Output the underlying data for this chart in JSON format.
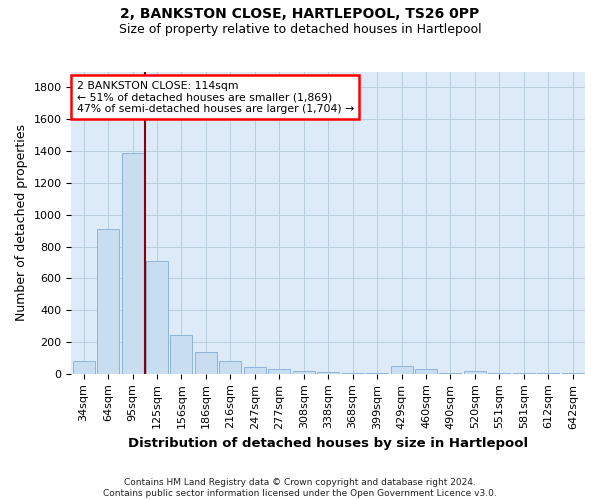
{
  "title": "2, BANKSTON CLOSE, HARTLEPOOL, TS26 0PP",
  "subtitle": "Size of property relative to detached houses in Hartlepool",
  "xlabel": "Distribution of detached houses by size in Hartlepool",
  "ylabel": "Number of detached properties",
  "footnote": "Contains HM Land Registry data © Crown copyright and database right 2024.\nContains public sector information licensed under the Open Government Licence v3.0.",
  "categories": [
    "34sqm",
    "64sqm",
    "95sqm",
    "125sqm",
    "156sqm",
    "186sqm",
    "216sqm",
    "247sqm",
    "277sqm",
    "308sqm",
    "338sqm",
    "368sqm",
    "399sqm",
    "429sqm",
    "460sqm",
    "490sqm",
    "520sqm",
    "551sqm",
    "581sqm",
    "612sqm",
    "642sqm"
  ],
  "values": [
    80,
    910,
    1390,
    710,
    245,
    140,
    80,
    45,
    30,
    20,
    10,
    5,
    5,
    50,
    30,
    5,
    20,
    5,
    5,
    5,
    5
  ],
  "bar_color": "#c9ddf1",
  "bar_edge_color": "#8fb4d8",
  "vline_x": 2.5,
  "vline_label": "2 BANKSTON CLOSE: 114sqm",
  "annotation_line1": "← 51% of detached houses are smaller (1,869)",
  "annotation_line2": "47% of semi-detached houses are larger (1,704) →",
  "ylim": [
    0,
    1900
  ],
  "yticks": [
    0,
    200,
    400,
    600,
    800,
    1000,
    1200,
    1400,
    1600,
    1800
  ],
  "background_color": "#ffffff",
  "plot_bg_color": "#ddeaf7",
  "grid_color": "#b8cfe0",
  "title_fontsize": 10,
  "subtitle_fontsize": 9,
  "axis_label_fontsize": 9,
  "tick_fontsize": 8,
  "footnote_fontsize": 6.5
}
